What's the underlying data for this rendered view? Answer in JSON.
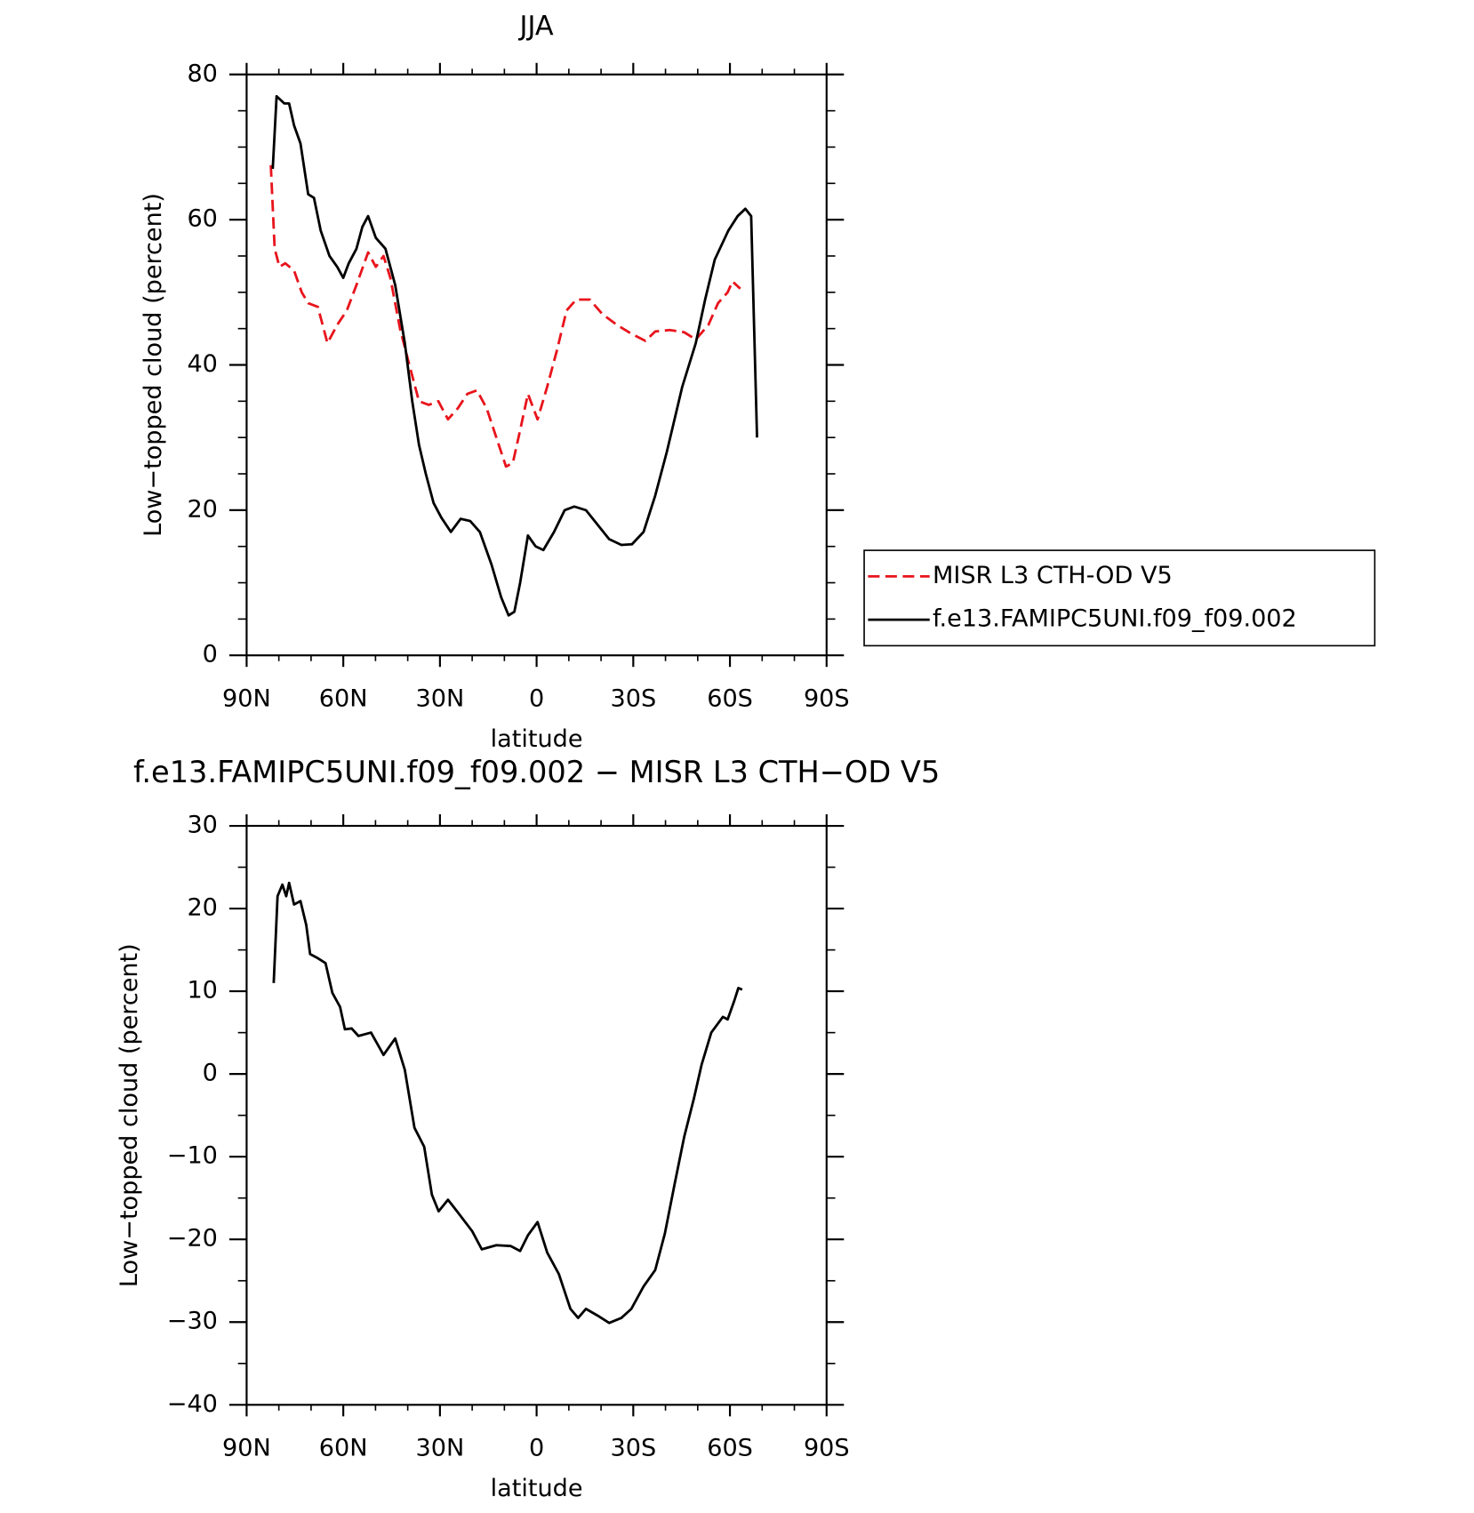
{
  "chart_data": [
    {
      "type": "line",
      "title": "JJA",
      "ylabel": "Low−topped cloud (percent)",
      "xlabel": "latitude",
      "xlim": [
        90,
        -90
      ],
      "xticks": [
        {
          "value": 90,
          "label": "90N"
        },
        {
          "value": 60,
          "label": "60N"
        },
        {
          "value": 30,
          "label": "30N"
        },
        0,
        {
          "value": -30,
          "label": "30S"
        },
        {
          "value": -60,
          "label": "60S"
        },
        {
          "value": -90,
          "label": "90S"
        }
      ],
      "xminorticks": [
        80,
        70,
        50,
        40,
        20,
        10,
        -10,
        -20,
        -40,
        -50,
        -70,
        -80
      ],
      "ylim": [
        0,
        80
      ],
      "yticks": [
        0,
        20,
        40,
        60,
        80
      ],
      "yminorticks": [
        5,
        10,
        15,
        25,
        30,
        35,
        45,
        50,
        55,
        65,
        70,
        75
      ],
      "legend": "right",
      "series": [
        {
          "name": "MISR L3 CTH-OD V5",
          "color": "#e8141c",
          "linestyle": "dashed",
          "x": [
            82.5,
            81.3,
            79.8,
            78,
            75.3,
            72.9,
            70.9,
            67.9,
            64.9,
            61.9,
            58.9,
            55.9,
            52.3,
            49.9,
            47.5,
            45.4,
            42.4,
            39.5,
            36.5,
            33.5,
            30.5,
            27.5,
            24.5,
            21.5,
            18.5,
            15.5,
            12.5,
            9.5,
            7.4,
            5.1,
            2.7,
            -0.3,
            -3.3,
            -6.3,
            -9.3,
            -12.3,
            -16.5,
            -20.4,
            -24.9,
            -29.4,
            -33.8,
            -36.8,
            -41.3,
            -45.8,
            -49.4,
            -53.3,
            -56.3,
            -59.3,
            -60.8,
            -63.2
          ],
          "values": [
            67.5,
            56,
            53.5,
            54,
            53,
            50,
            48.5,
            48,
            43,
            45.5,
            47.5,
            51,
            55.5,
            53.5,
            55,
            52,
            45,
            40,
            35,
            34.5,
            35,
            32.5,
            34,
            36,
            36.5,
            34,
            30,
            26,
            26.5,
            31,
            36,
            32.5,
            37,
            42,
            47.5,
            49,
            49,
            47,
            45.5,
            44.3,
            43.3,
            44.6,
            44.8,
            44.5,
            43.5,
            45.5,
            48.5,
            50,
            51.5,
            50.5
          ]
        },
        {
          "name": "f.e13.FAMIPC5UNI.f09_f09.002",
          "color": "#000000",
          "linestyle": "solid",
          "x": [
            81.9,
            80.7,
            78.3,
            76.8,
            75.3,
            73.3,
            70.9,
            69.1,
            67,
            64.3,
            61.9,
            60,
            58.3,
            55.9,
            54.1,
            52.3,
            49.9,
            46.9,
            43.9,
            40.9,
            38.6,
            36.5,
            34.4,
            32,
            29.6,
            26.6,
            23.6,
            20.6,
            17.6,
            14,
            11,
            8.7,
            6.9,
            5.1,
            2.7,
            0.3,
            -2.1,
            -5.4,
            -8.7,
            -11.7,
            -15.3,
            -18.9,
            -22.5,
            -26.3,
            -29.6,
            -33.2,
            -36.8,
            -40.4,
            -45.2,
            -49.4,
            -52.3,
            -55.3,
            -59.5,
            -62.4,
            -64.8,
            -66.6,
            -68.4
          ],
          "values": [
            67,
            77,
            76,
            76,
            73,
            70.5,
            63.5,
            63,
            58.5,
            55,
            53.5,
            52,
            54,
            56,
            59,
            60.5,
            57.5,
            56,
            51,
            43,
            35,
            29,
            25,
            21,
            19,
            17,
            18.8,
            18.5,
            17,
            12.5,
            8,
            5.5,
            6,
            10,
            16.5,
            15,
            14.5,
            17,
            20,
            20.5,
            20,
            18,
            16,
            15.2,
            15.3,
            17,
            22,
            28,
            37,
            43,
            49,
            54.5,
            58.5,
            60.5,
            61.5,
            60.5,
            30
          ]
        }
      ]
    },
    {
      "type": "line",
      "title": "f.e13.FAMIPC5UNI.f09_f09.002 − MISR L3 CTH−OD V5",
      "ylabel": "Low−topped cloud (percent)",
      "xlabel": "latitude",
      "xlim": [
        90,
        -90
      ],
      "xticks": [
        {
          "value": 90,
          "label": "90N"
        },
        {
          "value": 60,
          "label": "60N"
        },
        {
          "value": 30,
          "label": "30N"
        },
        0,
        {
          "value": -30,
          "label": "30S"
        },
        {
          "value": -60,
          "label": "60S"
        },
        {
          "value": -90,
          "label": "90S"
        }
      ],
      "xminorticks": [
        80,
        70,
        50,
        40,
        20,
        10,
        -10,
        -20,
        -40,
        -50,
        -70,
        -80
      ],
      "ylim": [
        -40,
        30
      ],
      "yticks": [
        {
          "value": -40,
          "label": "−40"
        },
        {
          "value": -30,
          "label": "−30"
        },
        {
          "value": -20,
          "label": "−20"
        },
        {
          "value": -10,
          "label": "−10"
        },
        0,
        10,
        20,
        30
      ],
      "yminorticks": [
        -35,
        -25,
        -15,
        -5,
        5,
        15,
        25
      ],
      "series": [
        {
          "color": "#000000",
          "linestyle": "solid",
          "x": [
            81.6,
            80.4,
            78.9,
            77.7,
            76.8,
            75.3,
            73.3,
            71.5,
            70.3,
            67.9,
            65.5,
            63.4,
            61,
            59.5,
            57.4,
            55.3,
            51.4,
            47.5,
            43.9,
            40.9,
            37.9,
            34.9,
            32.5,
            30.4,
            27.5,
            24.5,
            20,
            17,
            12.5,
            8,
            5.1,
            2.7,
            -0.3,
            -3.3,
            -6.9,
            -10.5,
            -12.9,
            -15.3,
            -18.9,
            -22.5,
            -26.3,
            -29.4,
            -33.2,
            -36.8,
            -39.8,
            -42.8,
            -45.8,
            -48.8,
            -51.2,
            -54.2,
            -57.8,
            -59.3,
            -61.4,
            -62.6,
            -63.8
          ],
          "values": [
            11,
            21.5,
            22.9,
            21.5,
            23.1,
            20.5,
            20.9,
            18,
            14.5,
            14,
            13.4,
            9.8,
            8.1,
            5.4,
            5.5,
            4.6,
            5,
            2.3,
            4.3,
            0.5,
            -6.5,
            -8.8,
            -14.6,
            -16.6,
            -15.2,
            -16.7,
            -19,
            -21.2,
            -20.7,
            -20.8,
            -21.4,
            -19.5,
            -17.9,
            -21.6,
            -24.2,
            -28.4,
            -29.5,
            -28.4,
            -29.2,
            -30.1,
            -29.5,
            -28.4,
            -25.7,
            -23.7,
            -19.3,
            -13.4,
            -7.6,
            -3,
            1.1,
            5,
            6.9,
            6.6,
            8.9,
            10.4,
            10.2
          ]
        }
      ]
    }
  ]
}
